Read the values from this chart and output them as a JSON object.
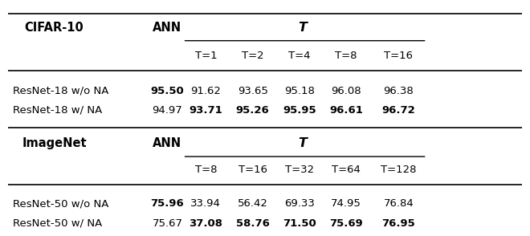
{
  "cifar_header_label": "CIFAR-10",
  "cifar_ann_label": "ANN",
  "cifar_T_label": "T",
  "cifar_t_values": [
    "T=1",
    "T=2",
    "T=4",
    "T=8",
    "T=16"
  ],
  "cifar_rows": [
    {
      "model": "ResNet-18 w/o NA",
      "ann": "95.50",
      "ann_bold": true,
      "values": [
        "91.62",
        "93.65",
        "95.18",
        "96.08",
        "96.38"
      ],
      "bold": [
        false,
        false,
        false,
        false,
        false
      ]
    },
    {
      "model": "ResNet-18 w/ NA",
      "ann": "94.97",
      "ann_bold": false,
      "values": [
        "93.71",
        "95.26",
        "95.95",
        "96.61",
        "96.72"
      ],
      "bold": [
        true,
        true,
        true,
        true,
        true
      ]
    }
  ],
  "imagenet_header_label": "ImageNet",
  "imagenet_ann_label": "ANN",
  "imagenet_T_label": "T",
  "imagenet_t_values": [
    "T=8",
    "T=16",
    "T=32",
    "T=64",
    "T=128"
  ],
  "imagenet_rows": [
    {
      "model": "ResNet-50 w/o NA",
      "ann": "75.96",
      "ann_bold": true,
      "values": [
        "33.94",
        "56.42",
        "69.33",
        "74.95",
        "76.84"
      ],
      "bold": [
        false,
        false,
        false,
        false,
        false
      ]
    },
    {
      "model": "ResNet-50 w/ NA",
      "ann": "75.67",
      "ann_bold": false,
      "values": [
        "37.08",
        "58.76",
        "71.50",
        "75.69",
        "76.95"
      ],
      "bold": [
        true,
        true,
        true,
        true,
        true
      ]
    }
  ],
  "bg_color": "#ffffff",
  "text_color": "#000000",
  "font_size": 9.5,
  "header_font_size": 10.5
}
